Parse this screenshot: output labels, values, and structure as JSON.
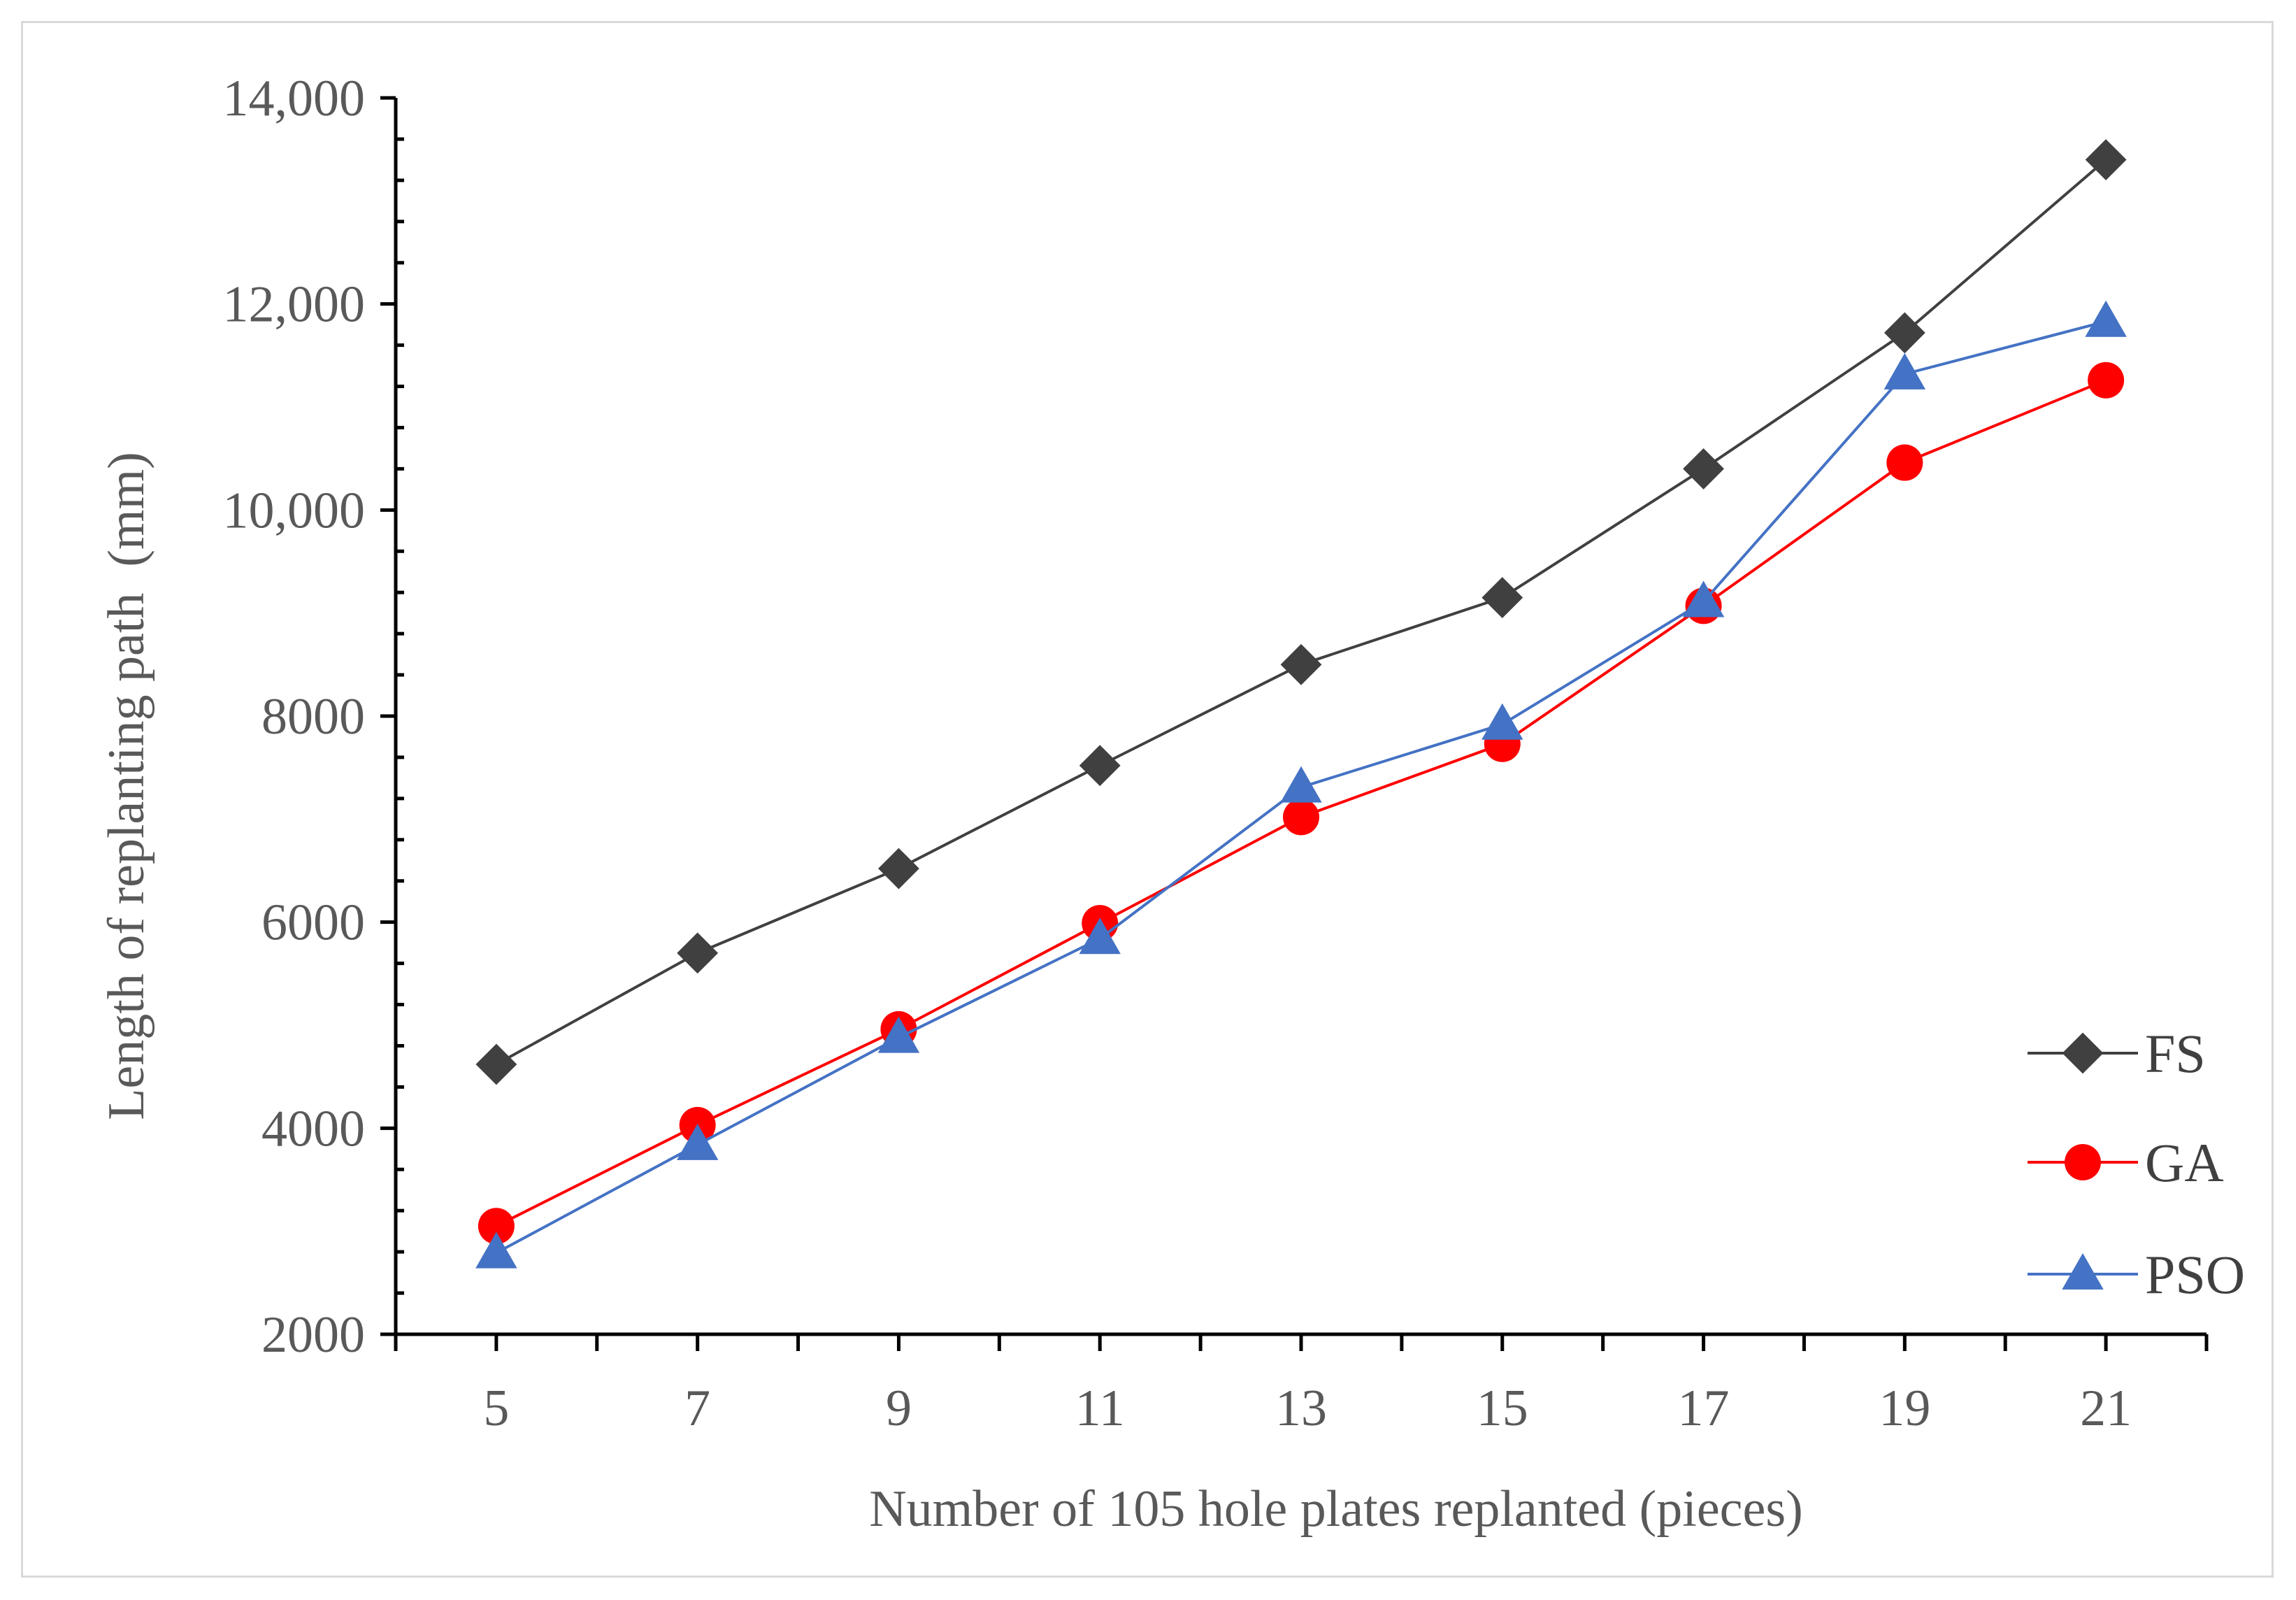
{
  "chart_data": {
    "type": "line",
    "title": "",
    "xlabel": "Number of 105 hole plates replanted (pieces)",
    "ylabel": "Length of replanting path  (mm)",
    "x": [
      5,
      7,
      9,
      11,
      13,
      15,
      17,
      19,
      21
    ],
    "x_tick_labels": [
      "5",
      "7",
      "9",
      "11",
      "13",
      "15",
      "17",
      "19",
      "21"
    ],
    "xlim": [
      4,
      22
    ],
    "ylim": [
      2000,
      14000
    ],
    "y_ticks": [
      2000,
      4000,
      6000,
      8000,
      10000,
      12000,
      14000
    ],
    "y_tick_labels": [
      "2000",
      "4000",
      "6000",
      "8000",
      "10,000",
      "12,000",
      "14,000"
    ],
    "grid": false,
    "legend_position": "bottom-right",
    "series": [
      {
        "name": "FS",
        "color": "#404040",
        "marker": "diamond",
        "values": [
          4620,
          5700,
          6520,
          7520,
          8500,
          9150,
          10400,
          11720,
          13400
        ]
      },
      {
        "name": "GA",
        "color": "#ff0000",
        "marker": "circle",
        "values": [
          3050,
          4030,
          4960,
          5990,
          7020,
          7730,
          9070,
          10460,
          11260
        ]
      },
      {
        "name": "PSO",
        "color": "#4472c4",
        "marker": "triangle",
        "values": [
          2790,
          3840,
          4880,
          5840,
          7310,
          7920,
          9110,
          11320,
          11830
        ]
      }
    ]
  }
}
